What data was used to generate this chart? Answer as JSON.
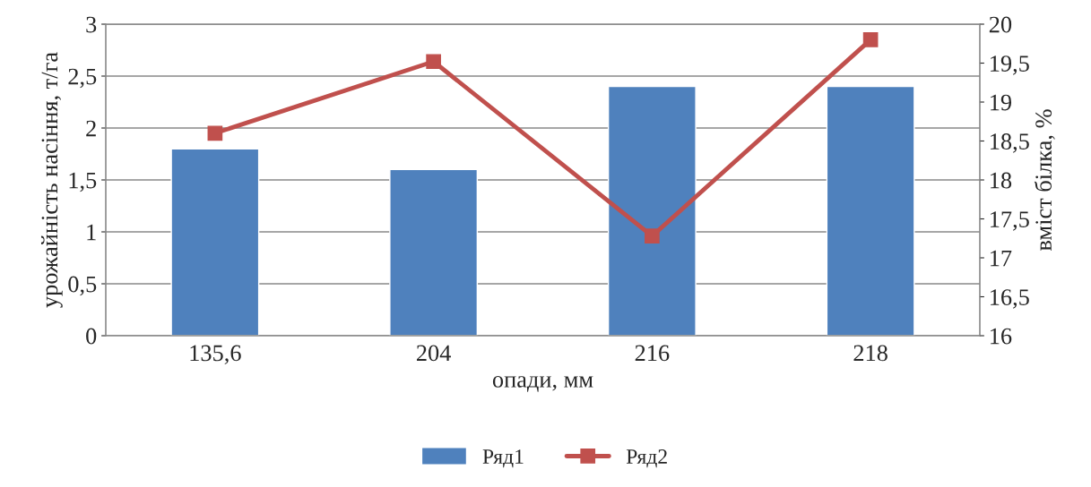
{
  "chart_data": {
    "type": "bar",
    "xlabel": "опади, мм",
    "ylabel": "урожайність насіння, т/га",
    "y2label": "вміст білка, %",
    "categories": [
      "135,6",
      "204",
      "216",
      "218"
    ],
    "series": [
      {
        "name": "Ряд1",
        "color": "#4f81bd",
        "values": [
          1.8,
          1.6,
          2.4,
          2.4
        ]
      },
      {
        "name": "Ряд2",
        "type": "line",
        "axis": "y2",
        "color": "#c0504d",
        "marker": "square",
        "values": [
          18.6,
          19.52,
          17.28,
          19.8
        ]
      }
    ],
    "ylim": [
      0,
      3
    ],
    "yticks": [
      0,
      {
        "value": 0.5,
        "label": "0,5"
      },
      1,
      {
        "value": 1.5,
        "label": "1,5"
      },
      2,
      {
        "value": 2.5,
        "label": "2,5"
      },
      3
    ],
    "y2lim": [
      16,
      20
    ],
    "y2ticks": [
      16,
      {
        "value": 16.5,
        "label": "16,5"
      },
      17,
      {
        "value": 17.5,
        "label": "17,5"
      },
      18,
      {
        "value": 18.5,
        "label": "18,5"
      },
      19,
      {
        "value": 19.5,
        "label": "19,5"
      },
      20
    ],
    "grid": "y",
    "legend": "bottom"
  }
}
